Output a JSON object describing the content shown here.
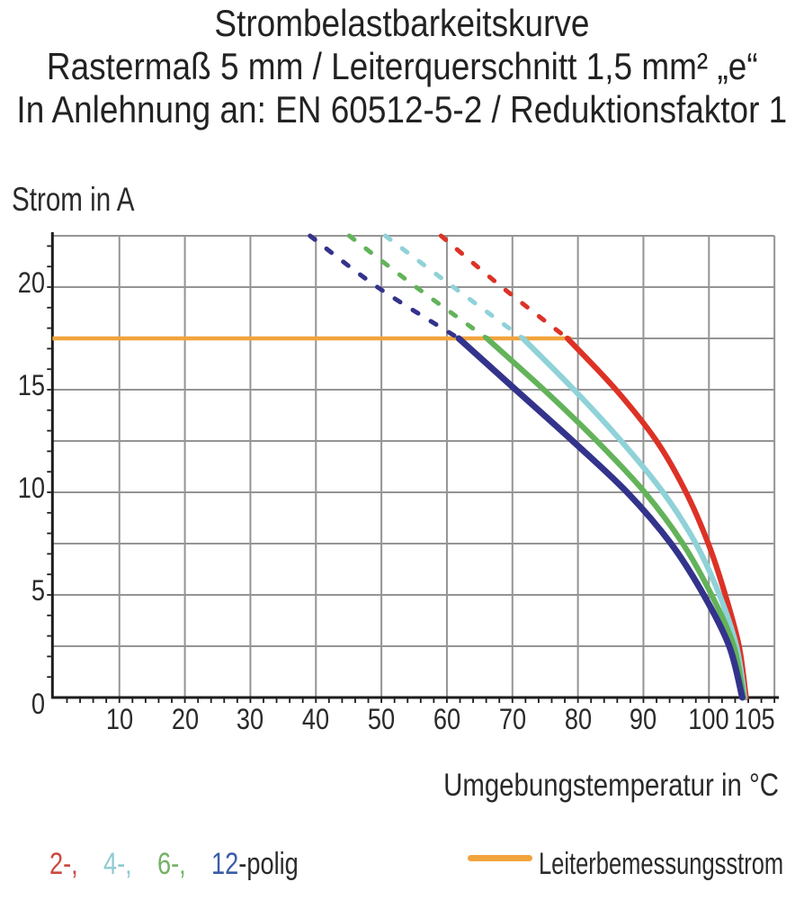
{
  "title": {
    "line1": "Strombelastbarkeitskurve",
    "line2": "Rastermaß 5 mm / Leiterquerschnitt 1,5 mm² „e“",
    "line3": "In Anlehnung an: EN 60512-5-2 / Reduktionsfaktor 1"
  },
  "chart_data": {
    "type": "line",
    "ylabel": "Strom in A",
    "xlabel": "Umgebungstemperatur in °C",
    "xlim": [
      0,
      110
    ],
    "ylim": [
      0,
      22.5
    ],
    "x_tick_labels": [
      10,
      20,
      30,
      40,
      50,
      60,
      70,
      80,
      90,
      100,
      105
    ],
    "y_tick_labels": [
      0,
      5,
      10,
      15,
      20
    ],
    "x_grid_step": 10,
    "y_grid_step": 2.5,
    "x_minor_tick_step": 2,
    "y_minor_tick_step": 1,
    "grid_color": "#949494",
    "axis_color": "#1c1c1c",
    "rated_line": {
      "label": "Leiterbemessungsstrom",
      "value": 17.5,
      "color": "#f2a43c",
      "t_end": 79
    },
    "dashed_above_current": 17.5,
    "series": [
      {
        "name": "2-polig",
        "poles": 2,
        "color": "#dd3226",
        "points": [
          [
            59.1,
            22.5
          ],
          [
            68.4,
            20
          ],
          [
            78.4,
            17.5
          ],
          [
            85.8,
            15
          ],
          [
            92.0,
            12.5
          ],
          [
            96.5,
            10
          ],
          [
            99.9,
            7.5
          ],
          [
            102.5,
            5
          ],
          [
            104.6,
            2.5
          ],
          [
            105.65,
            0
          ]
        ]
      },
      {
        "name": "4-polig",
        "poles": 4,
        "color": "#8fd2d8",
        "points": [
          [
            50.6,
            22.5
          ],
          [
            61.0,
            20
          ],
          [
            71.6,
            17.5
          ],
          [
            79.4,
            15
          ],
          [
            86.6,
            12.5
          ],
          [
            93.0,
            10
          ],
          [
            98.0,
            7.5
          ],
          [
            101.6,
            5
          ],
          [
            104.2,
            2.5
          ],
          [
            105.45,
            0
          ]
        ]
      },
      {
        "name": "6-polig",
        "poles": 6,
        "color": "#63b35a",
        "points": [
          [
            45.1,
            22.5
          ],
          [
            55.3,
            20
          ],
          [
            66.1,
            17.5
          ],
          [
            74.8,
            15
          ],
          [
            82.9,
            12.5
          ],
          [
            90.2,
            10
          ],
          [
            96.0,
            7.5
          ],
          [
            100.4,
            5
          ],
          [
            103.8,
            2.5
          ],
          [
            105.3,
            0
          ]
        ]
      },
      {
        "name": "12-polig",
        "poles": 12,
        "color": "#33338c",
        "points": [
          [
            39.1,
            22.5
          ],
          [
            49.4,
            20
          ],
          [
            61.8,
            17.5
          ],
          [
            70.5,
            15
          ],
          [
            79.2,
            12.5
          ],
          [
            87.5,
            10
          ],
          [
            94.2,
            7.5
          ],
          [
            99.2,
            5
          ],
          [
            103.1,
            2.5
          ],
          [
            105.1,
            0
          ]
        ]
      }
    ]
  },
  "legend": {
    "items": [
      {
        "text": "2-,",
        "color": "#cb4a42"
      },
      {
        "text": "4-,",
        "color": "#90cad2"
      },
      {
        "text": "6-,",
        "color": "#74b266"
      },
      {
        "text": "12",
        "color": "#3a5ca8"
      },
      {
        "text": "-polig",
        "color": "#2a2a2a"
      }
    ]
  }
}
